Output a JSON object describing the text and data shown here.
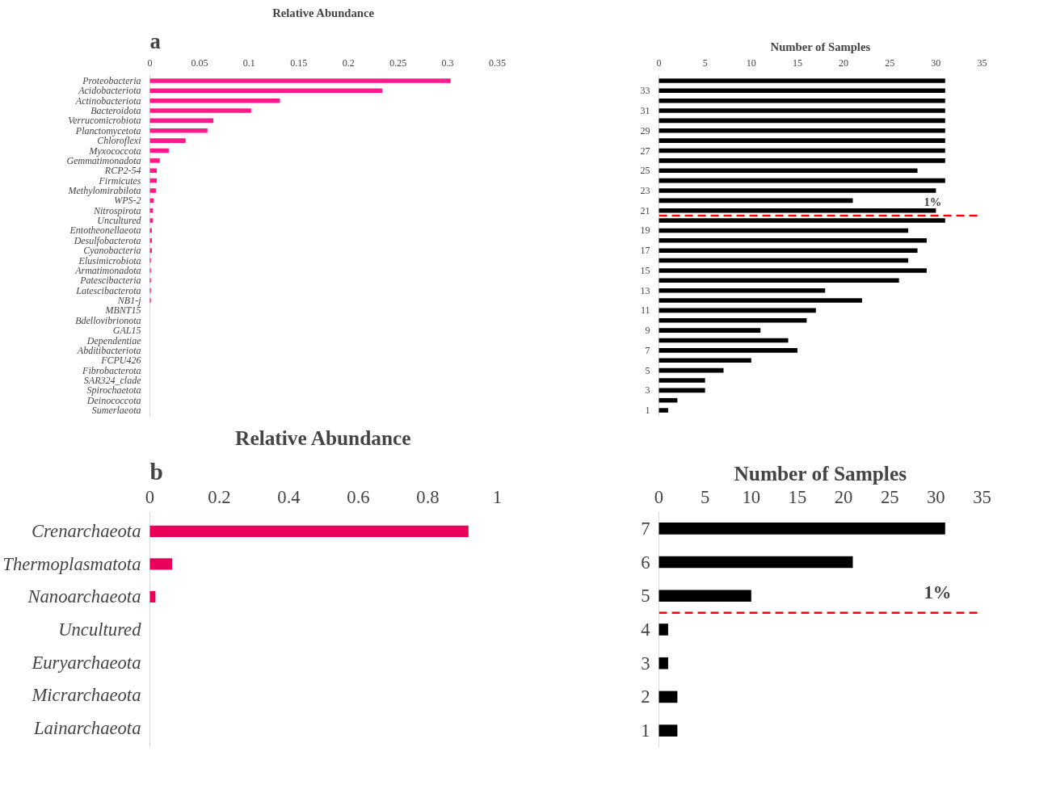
{
  "chart_data": [
    {
      "type": "bar",
      "orientation": "horizontal",
      "title": "Relative Abundance",
      "annotations": [
        "a"
      ],
      "grid": false,
      "categories": [
        "Proteobacteria",
        "Acidobacteriota",
        "Actinobacteriota",
        "Bacteroidota",
        "Verrucomicrobiota",
        "Planctomycetota",
        "Chloroflexi",
        "Myxococcota",
        "Gemmatimonadota",
        "RCP2-54",
        "Firmicutes",
        "Methylomirabilota",
        "WPS-2",
        "Nitrospirota",
        "Uncultured",
        "Entotheonellaeota",
        "Desulfobacterota",
        "Cyanobacteria",
        "Elusimicrobiota",
        "Armatimonadota",
        "Patescibacteria",
        "Latescibacterota",
        "NB1-j",
        "MBNT15",
        "Bdellovibrionota",
        "GAL15",
        "Dependentiae",
        "Abditibacteriota",
        "FCPU426",
        "Fibrobacterota",
        "SAR324_clade",
        "Spirochaetota",
        "Deinococcota",
        "Sumerlaeota"
      ],
      "series": [
        {
          "color": "#ff1a8c",
          "values": [
            0.303,
            0.234,
            0.131,
            0.102,
            0.064,
            0.058,
            0.036,
            0.019,
            0.01,
            0.007,
            0.007,
            0.006,
            0.004,
            0.003,
            0.003,
            0.002,
            0.002,
            0.002,
            0.001,
            0.001,
            0.001,
            0.001,
            0.001,
            0,
            0,
            0,
            0,
            0,
            0,
            0,
            0,
            0,
            0,
            0
          ]
        }
      ],
      "xlim": [
        0,
        0.35
      ],
      "xticks": [
        0,
        0.05,
        0.1,
        0.15,
        0.2,
        0.25,
        0.3,
        0.35
      ]
    },
    {
      "type": "bar",
      "orientation": "horizontal",
      "title": "Number of Samples",
      "grid": false,
      "x": [
        34,
        33,
        32,
        31,
        30,
        29,
        28,
        27,
        26,
        25,
        24,
        23,
        22,
        21,
        20,
        19,
        18,
        17,
        16,
        15,
        14,
        13,
        12,
        11,
        10,
        9,
        8,
        7,
        6,
        5,
        4,
        3,
        2,
        1
      ],
      "series": [
        {
          "color": "#000000",
          "values": [
            31,
            31,
            31,
            31,
            31,
            31,
            31,
            31,
            31,
            28,
            31,
            30,
            21,
            30,
            31,
            27,
            29,
            28,
            27,
            29,
            26,
            18,
            22,
            17,
            16,
            11,
            14,
            15,
            10,
            7,
            5,
            5,
            2,
            1
          ]
        }
      ],
      "xlim": [
        0,
        35
      ],
      "xticks": [
        0,
        5,
        10,
        15,
        20,
        25,
        30,
        35
      ],
      "ylim": [
        0.4,
        34.6
      ],
      "yticks": [
        1,
        3,
        5,
        7,
        9,
        11,
        13,
        15,
        17,
        19,
        21,
        23,
        25,
        27,
        29,
        31,
        33
      ],
      "annotations": [
        "1%"
      ],
      "ref_lines": [
        {
          "axis": "y",
          "value": 20.5,
          "color": "#ff0000",
          "line_style": "dashed"
        }
      ]
    },
    {
      "type": "bar",
      "orientation": "horizontal",
      "title": "Relative Abundance",
      "annotations": [
        "b"
      ],
      "grid": false,
      "categories": [
        "Crenarchaeota",
        "Thermoplasmatota",
        "Nanoarchaeota",
        "Uncultured",
        "Euryarchaeota",
        "Micrarchaeota",
        "Lainarchaeota"
      ],
      "series": [
        {
          "color": "#e8005a",
          "values": [
            0.917,
            0.064,
            0.016,
            0,
            0,
            0,
            0
          ]
        }
      ],
      "xlim": [
        0,
        1
      ],
      "xticks": [
        0,
        0.2,
        0.4,
        0.6,
        0.8,
        1
      ]
    },
    {
      "type": "bar",
      "orientation": "horizontal",
      "title": "Number of Samples",
      "grid": false,
      "x": [
        7,
        6,
        5,
        4,
        3,
        2,
        1
      ],
      "series": [
        {
          "color": "#000000",
          "values": [
            31,
            21,
            10,
            1,
            1,
            2,
            2
          ]
        }
      ],
      "xlim": [
        0,
        35
      ],
      "xticks": [
        0,
        5,
        10,
        15,
        20,
        25,
        30,
        35
      ],
      "ylim": [
        0.5,
        7.5
      ],
      "yticks": [
        1,
        2,
        3,
        4,
        5,
        6,
        7
      ],
      "annotations": [
        "1%"
      ],
      "ref_lines": [
        {
          "axis": "y",
          "value": 4.5,
          "color": "#ff0000",
          "line_style": "dashed"
        }
      ]
    }
  ]
}
